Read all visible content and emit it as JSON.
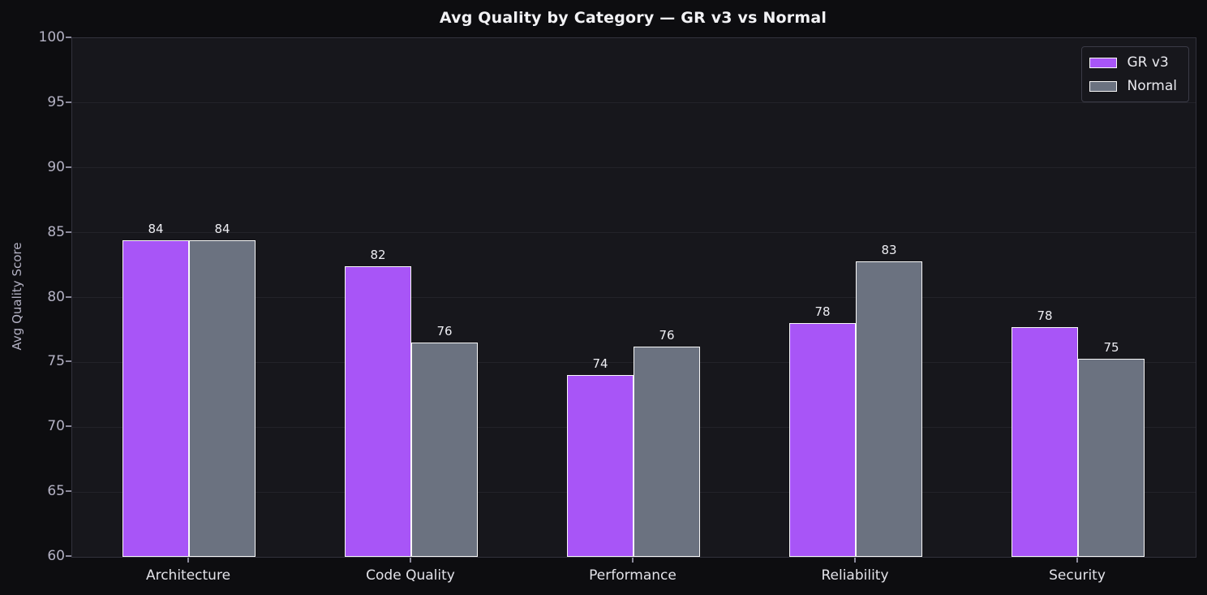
{
  "chart_data": {
    "type": "bar",
    "title": "Avg Quality by Category — GR v3 vs Normal",
    "xlabel": "",
    "ylabel": "Avg Quality Score",
    "categories": [
      "Architecture",
      "Code Quality",
      "Performance",
      "Reliability",
      "Security"
    ],
    "series": [
      {
        "name": "GR v3",
        "color": "#a855f7",
        "values": [
          84.4,
          82.4,
          74.0,
          78.0,
          77.7
        ],
        "value_labels": [
          "84",
          "82",
          "74",
          "78",
          "78"
        ]
      },
      {
        "name": "Normal",
        "color": "#6b7280",
        "values": [
          84.4,
          76.5,
          76.2,
          82.8,
          75.3
        ],
        "value_labels": [
          "84",
          "76",
          "76",
          "83",
          "75"
        ]
      }
    ],
    "ylim": [
      60,
      100
    ],
    "yticks": [
      60,
      65,
      70,
      75,
      80,
      85,
      90,
      95,
      100
    ],
    "grid": true,
    "legend_position": "upper right",
    "colors": {
      "figure_background": "#0d0d10",
      "plot_background": "#17171c",
      "gridline": "#232329",
      "spine": "#32323c",
      "title_text": "#f2f2f5",
      "tick_text": "#b4b2c4",
      "category_text": "#e2e2e8",
      "value_label_text": "#ededf2",
      "bar_edge": "#f8f8f8"
    }
  }
}
